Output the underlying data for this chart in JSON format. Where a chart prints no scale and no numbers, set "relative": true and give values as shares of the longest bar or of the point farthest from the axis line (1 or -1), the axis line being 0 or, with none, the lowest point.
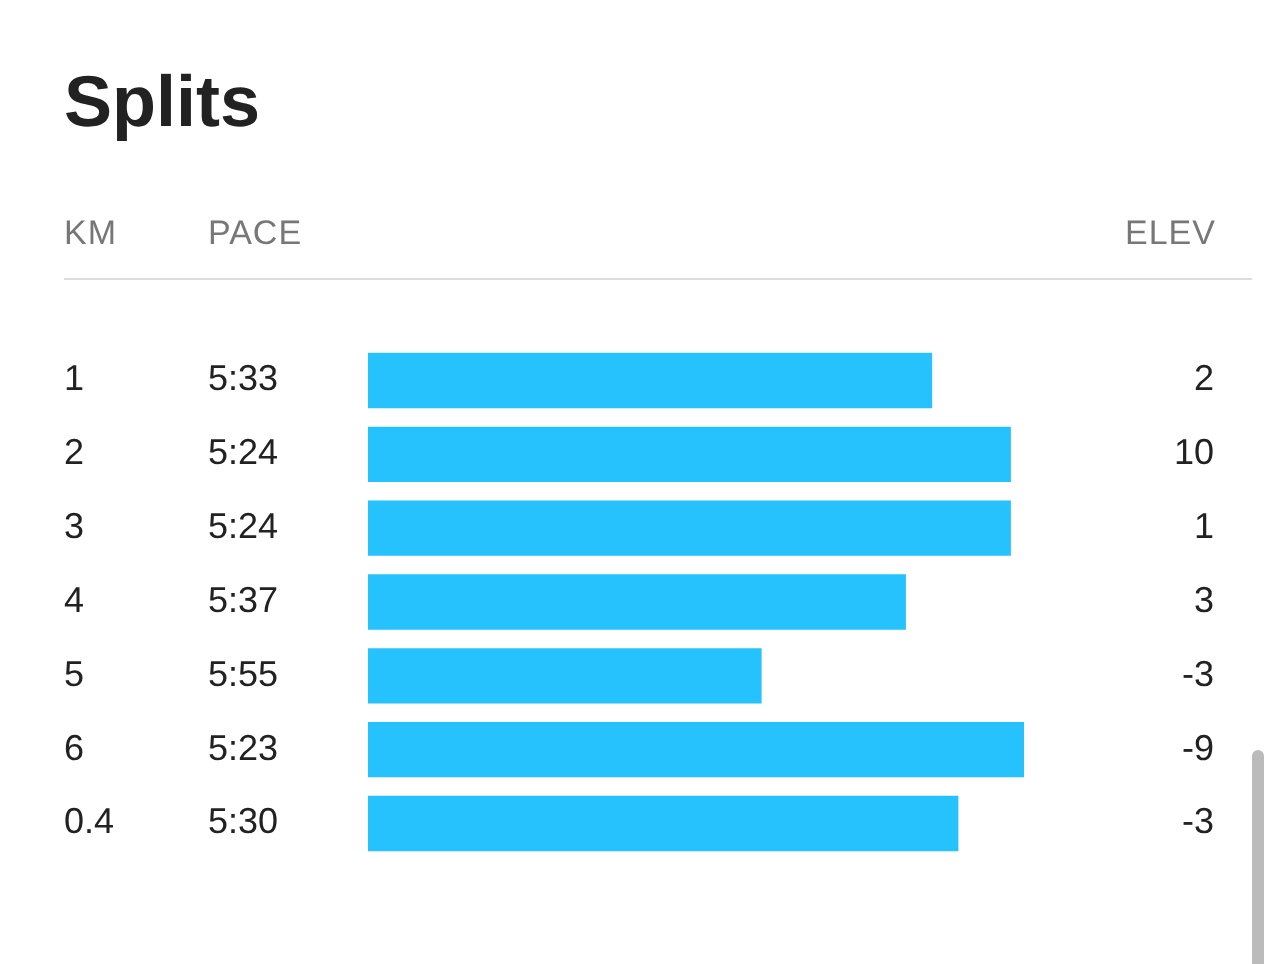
{
  "chart_data": {
    "type": "bar",
    "orientation": "horizontal",
    "relative": true,
    "title": "Splits",
    "ylabel": "KM",
    "categories": [
      "1",
      "2",
      "3",
      "4",
      "5",
      "6",
      "0.4"
    ],
    "values": [
      0.86,
      0.98,
      0.98,
      0.82,
      0.6,
      1,
      0.9
    ],
    "color": "#25c2fd",
    "legend": false,
    "annotations": [
      "PACE",
      "ELEV",
      "5:33",
      "5:24",
      "5:24",
      "5:37",
      "5:55",
      "5:23",
      "5:30",
      "2",
      "10",
      "1",
      "3",
      "-3",
      "-9",
      "-3"
    ]
  }
}
